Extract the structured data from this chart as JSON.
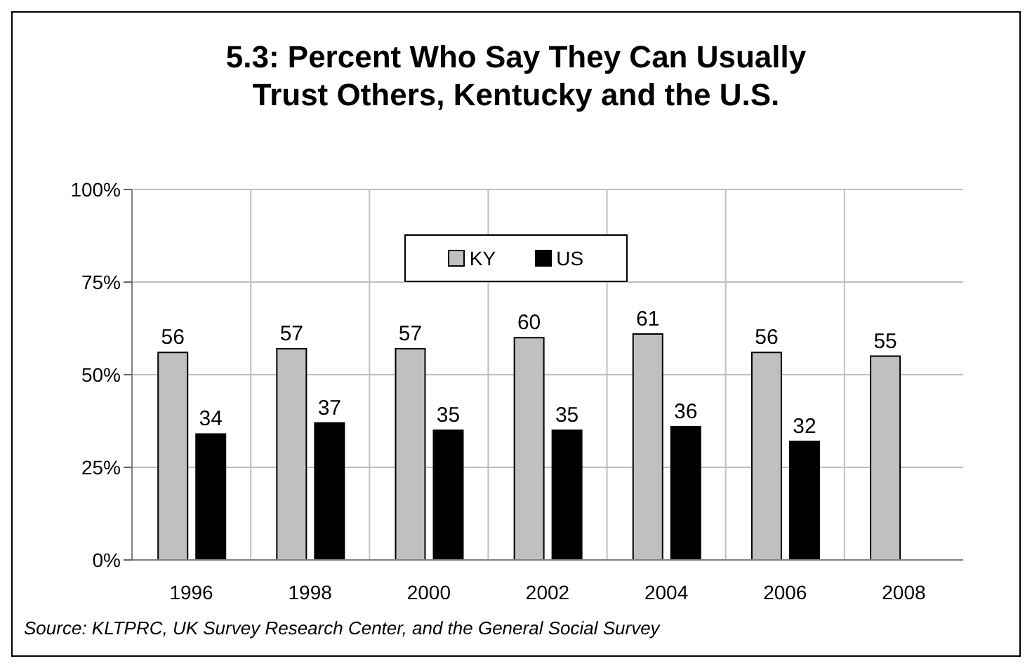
{
  "chart_data": {
    "type": "bar",
    "title": "5.3:  Percent Who Say They Can Usually Trust Others, Kentucky and the U.S.",
    "categories": [
      "1996",
      "1998",
      "2000",
      "2002",
      "2004",
      "2006",
      "2008"
    ],
    "series": [
      {
        "name": "KY",
        "color": "#c0c0c0",
        "values": [
          56,
          57,
          57,
          60,
          61,
          56,
          55
        ]
      },
      {
        "name": "US",
        "color": "#000000",
        "values": [
          34,
          37,
          35,
          35,
          36,
          32,
          null
        ]
      }
    ],
    "ylim": [
      0,
      100
    ],
    "yticks": [
      {
        "value": 0,
        "label": "0%"
      },
      {
        "value": 25,
        "label": "25%"
      },
      {
        "value": 50,
        "label": "50%"
      },
      {
        "value": 75,
        "label": "75%"
      },
      {
        "value": 100,
        "label": "100%"
      }
    ],
    "grid": true,
    "legend": "top",
    "data_labels": true,
    "annotations": [
      "Source: KLTPRC, UK Survey Research Center, and the General Social Survey"
    ]
  }
}
